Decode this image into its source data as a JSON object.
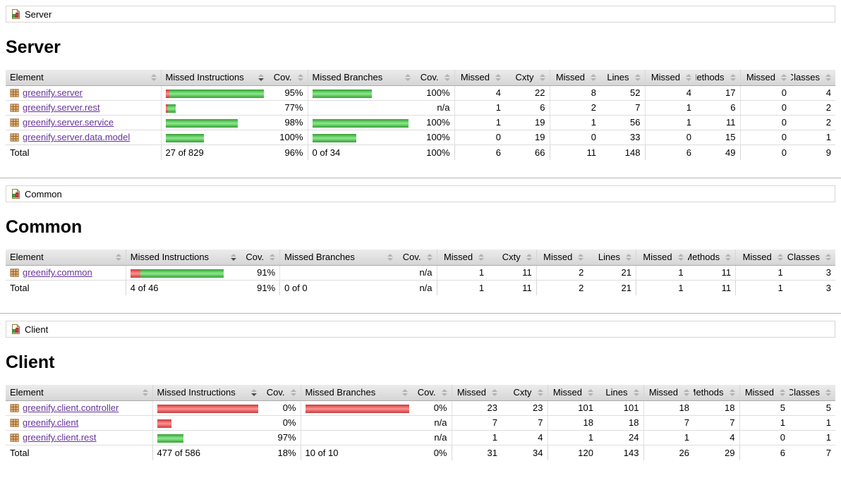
{
  "page": {
    "colors": {
      "link": "#663399",
      "bar_green_dark": "#35a035",
      "bar_green_light": "#8ce98c",
      "bar_red_dark": "#c93a3a",
      "bar_red_light": "#ff9191",
      "header_bg": "#dedede",
      "divider": "#b7b7b7"
    },
    "icons": {
      "breadcrumb": "group-report-icon",
      "row": "package-icon",
      "header": "sort-arrows-icon"
    },
    "sort": {
      "sorted_column": "Missed Instructions",
      "direction": "down"
    }
  },
  "sections": [
    {
      "breadcrumb": {
        "label": "Server"
      },
      "title": "Server",
      "table": {
        "headers": [
          {
            "label": "Element"
          },
          {
            "label": "Missed Instructions",
            "sorted": true
          },
          {
            "label": "Cov."
          },
          {
            "label": "Missed Branches"
          },
          {
            "label": "Cov."
          },
          {
            "label": "Missed"
          },
          {
            "label": "Cxty"
          },
          {
            "label": "Missed"
          },
          {
            "label": "Lines"
          },
          {
            "label": "Missed"
          },
          {
            "label": "Methods"
          },
          {
            "label": "Missed"
          },
          {
            "label": "Classes"
          }
        ],
        "rows": [
          {
            "name": "greenify.server",
            "instr_red": 5,
            "instr_green": 134,
            "instr_cov": "95%",
            "branch_red": 0,
            "branch_green": 84,
            "branch_cov": "100%",
            "missed_cxty": "4",
            "cxty": "22",
            "missed_lines": "8",
            "lines": "52",
            "missed_methods": "4",
            "methods": "17",
            "missed_classes": "0",
            "classes": "4"
          },
          {
            "name": "greenify.server.rest",
            "instr_red": 3,
            "instr_green": 11,
            "instr_cov": "77%",
            "branch_red": 0,
            "branch_green": 0,
            "branch_cov": "n/a",
            "missed_cxty": "1",
            "cxty": "6",
            "missed_lines": "2",
            "lines": "7",
            "missed_methods": "1",
            "methods": "6",
            "missed_classes": "0",
            "classes": "2"
          },
          {
            "name": "greenify.server.service",
            "instr_red": 0,
            "instr_green": 102,
            "instr_cov": "98%",
            "branch_red": 0,
            "branch_green": 136,
            "branch_cov": "100%",
            "missed_cxty": "1",
            "cxty": "19",
            "missed_lines": "1",
            "lines": "56",
            "missed_methods": "1",
            "methods": "11",
            "missed_classes": "0",
            "classes": "2"
          },
          {
            "name": "greenify.server.data.model",
            "instr_red": 0,
            "instr_green": 54,
            "instr_cov": "100%",
            "branch_red": 0,
            "branch_green": 62,
            "branch_cov": "100%",
            "missed_cxty": "0",
            "cxty": "19",
            "missed_lines": "0",
            "lines": "33",
            "missed_methods": "0",
            "methods": "15",
            "missed_classes": "0",
            "classes": "1"
          }
        ],
        "total": {
          "label": "Total",
          "instr": "27 of 829",
          "instr_cov": "96%",
          "branch": "0 of 34",
          "branch_cov": "100%",
          "missed_cxty": "6",
          "cxty": "66",
          "missed_lines": "11",
          "lines": "148",
          "missed_methods": "6",
          "methods": "49",
          "missed_classes": "0",
          "classes": "9"
        }
      }
    },
    {
      "breadcrumb": {
        "label": "Common"
      },
      "title": "Common",
      "table": {
        "headers": [
          {
            "label": "Element"
          },
          {
            "label": "Missed Instructions",
            "sorted": true
          },
          {
            "label": "Cov."
          },
          {
            "label": "Missed Branches"
          },
          {
            "label": "Cov."
          },
          {
            "label": "Missed"
          },
          {
            "label": "Cxty"
          },
          {
            "label": "Missed"
          },
          {
            "label": "Lines"
          },
          {
            "label": "Missed"
          },
          {
            "label": "Methods"
          },
          {
            "label": "Missed"
          },
          {
            "label": "Classes"
          }
        ],
        "rows": [
          {
            "name": "greenify.common",
            "instr_red": 14,
            "instr_green": 118,
            "instr_cov": "91%",
            "branch_red": 0,
            "branch_green": 0,
            "branch_cov": "n/a",
            "missed_cxty": "1",
            "cxty": "11",
            "missed_lines": "2",
            "lines": "21",
            "missed_methods": "1",
            "methods": "11",
            "missed_classes": "1",
            "classes": "3"
          }
        ],
        "total": {
          "label": "Total",
          "instr": "4 of 46",
          "instr_cov": "91%",
          "branch": "0 of 0",
          "branch_cov": "n/a",
          "missed_cxty": "1",
          "cxty": "11",
          "missed_lines": "2",
          "lines": "21",
          "missed_methods": "1",
          "methods": "11",
          "missed_classes": "1",
          "classes": "3"
        }
      }
    },
    {
      "breadcrumb": {
        "label": "Client"
      },
      "title": "Client",
      "table": {
        "headers": [
          {
            "label": "Element"
          },
          {
            "label": "Missed Instructions",
            "sorted": true
          },
          {
            "label": "Cov."
          },
          {
            "label": "Missed Branches"
          },
          {
            "label": "Cov."
          },
          {
            "label": "Missed"
          },
          {
            "label": "Cxty"
          },
          {
            "label": "Missed"
          },
          {
            "label": "Lines"
          },
          {
            "label": "Missed"
          },
          {
            "label": "Methods"
          },
          {
            "label": "Missed"
          },
          {
            "label": "Classes"
          }
        ],
        "rows": [
          {
            "name": "greenify.client.controller",
            "instr_red": 143,
            "instr_green": 0,
            "instr_cov": "0%",
            "branch_red": 147,
            "branch_green": 0,
            "branch_cov": "0%",
            "missed_cxty": "23",
            "cxty": "23",
            "missed_lines": "101",
            "lines": "101",
            "missed_methods": "18",
            "methods": "18",
            "missed_classes": "5",
            "classes": "5"
          },
          {
            "name": "greenify.client",
            "instr_red": 20,
            "instr_green": 0,
            "instr_cov": "0%",
            "branch_red": 0,
            "branch_green": 0,
            "branch_cov": "n/a",
            "missed_cxty": "7",
            "cxty": "7",
            "missed_lines": "18",
            "lines": "18",
            "missed_methods": "7",
            "methods": "7",
            "missed_classes": "1",
            "classes": "1"
          },
          {
            "name": "greenify.client.rest",
            "instr_red": 0,
            "instr_green": 37,
            "instr_cov": "97%",
            "branch_red": 0,
            "branch_green": 0,
            "branch_cov": "n/a",
            "missed_cxty": "1",
            "cxty": "4",
            "missed_lines": "1",
            "lines": "24",
            "missed_methods": "1",
            "methods": "4",
            "missed_classes": "0",
            "classes": "1"
          }
        ],
        "total": {
          "label": "Total",
          "instr": "477 of 586",
          "instr_cov": "18%",
          "branch": "10 of 10",
          "branch_cov": "0%",
          "missed_cxty": "31",
          "cxty": "34",
          "missed_lines": "120",
          "lines": "143",
          "missed_methods": "26",
          "methods": "29",
          "missed_classes": "6",
          "classes": "7"
        }
      }
    }
  ]
}
